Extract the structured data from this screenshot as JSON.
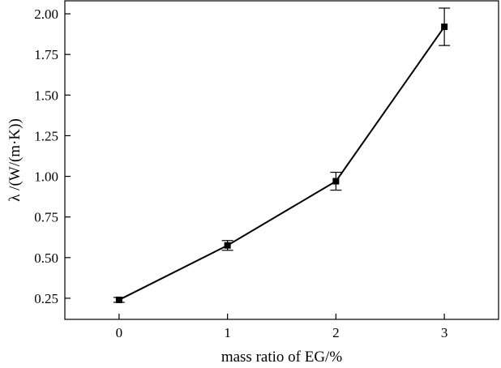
{
  "chart_data": {
    "type": "line",
    "xlabel": "mass ratio of EG/%",
    "ylabel": "λ /(W/(m·K))",
    "x": [
      0,
      1,
      2,
      3
    ],
    "y": [
      0.24,
      0.575,
      0.97,
      1.92
    ],
    "error": [
      0.015,
      0.03,
      0.055,
      0.115
    ],
    "xlim": [
      -0.5,
      3.5
    ],
    "ylim": [
      0.12,
      2.08
    ],
    "xticks": [
      0,
      1,
      2,
      3
    ],
    "xtick_labels": [
      "0",
      "1",
      "2",
      "3"
    ],
    "yticks": [
      0.25,
      0.5,
      0.75,
      1.0,
      1.25,
      1.5,
      1.75,
      2.0
    ],
    "ytick_labels": [
      "0.25",
      "0.50",
      "0.75",
      "1.00",
      "1.25",
      "1.50",
      "1.75",
      "2.00"
    ],
    "marker": "square",
    "color": "#000000",
    "grid": false
  }
}
